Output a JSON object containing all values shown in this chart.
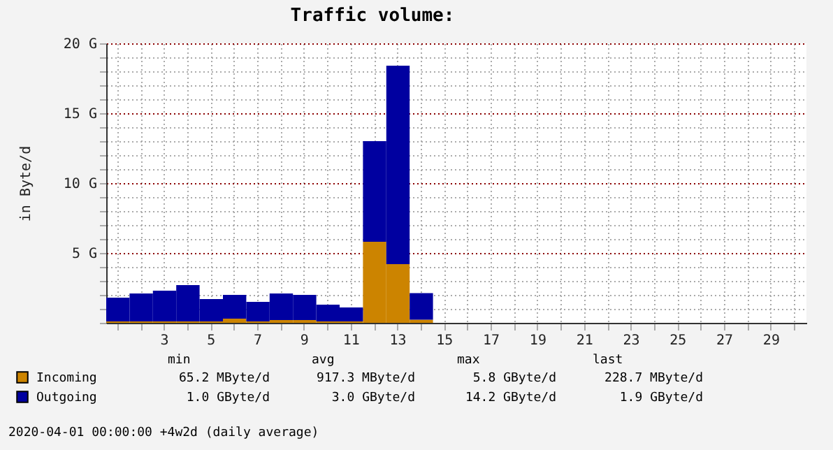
{
  "chart_data": {
    "type": "bar",
    "stacked": true,
    "title": "Traffic volume:",
    "ylabel": "in Byte/d",
    "categories": [
      null,
      null,
      "3",
      null,
      "5",
      null,
      "7",
      null,
      "9",
      null,
      "11",
      null,
      "13",
      null,
      "15",
      null,
      "17",
      null,
      "19",
      null,
      "21",
      null,
      "23",
      null,
      "25",
      null,
      "27",
      null,
      "29",
      null
    ],
    "series": [
      {
        "name": "Incoming",
        "color": "#cc8400",
        "values": [
          0.1,
          0.1,
          0.1,
          0.1,
          0.1,
          0.3,
          0.1,
          0.2,
          0.2,
          0.1,
          0.1,
          5.8,
          4.2,
          0.23,
          null,
          null,
          null,
          null,
          null,
          null,
          null,
          null,
          null,
          null,
          null,
          null,
          null,
          null,
          null,
          null
        ]
      },
      {
        "name": "Outgoing",
        "color": "#0000a0",
        "values": [
          1.7,
          2.0,
          2.2,
          2.6,
          1.6,
          1.7,
          1.4,
          1.9,
          1.8,
          1.2,
          1.0,
          7.2,
          14.2,
          1.9,
          null,
          null,
          null,
          null,
          null,
          null,
          null,
          null,
          null,
          null,
          null,
          null,
          null,
          null,
          null,
          null
        ]
      }
    ],
    "ylim": [
      0,
      20
    ],
    "yticks": [
      {
        "value": 0,
        "label": null
      },
      {
        "value": 1,
        "label": null
      },
      {
        "value": 2,
        "label": null
      },
      {
        "value": 3,
        "label": null
      },
      {
        "value": 4,
        "label": null
      },
      {
        "value": 5,
        "label": "5 G"
      },
      {
        "value": 6,
        "label": null
      },
      {
        "value": 7,
        "label": null
      },
      {
        "value": 8,
        "label": null
      },
      {
        "value": 9,
        "label": null
      },
      {
        "value": 10,
        "label": "10 G"
      },
      {
        "value": 11,
        "label": null
      },
      {
        "value": 12,
        "label": null
      },
      {
        "value": 13,
        "label": null
      },
      {
        "value": 14,
        "label": null
      },
      {
        "value": 15,
        "label": "15 G"
      },
      {
        "value": 16,
        "label": null
      },
      {
        "value": 17,
        "label": null
      },
      {
        "value": 18,
        "label": null
      },
      {
        "value": 19,
        "label": null
      },
      {
        "value": 20,
        "label": "20 G"
      }
    ],
    "grid": true,
    "legend": "bottom",
    "annotations": [
      "min",
      "avg",
      "max",
      "last",
      "65.2 MByte/d",
      "917.3 MByte/d",
      "5.8 GByte/d",
      "228.7 MByte/d",
      "1.0 GByte/d",
      "3.0 GByte/d",
      "14.2 GByte/d",
      "1.9 GByte/d",
      "2020-04-01 00:00:00 +4w2d (daily average)"
    ]
  }
}
